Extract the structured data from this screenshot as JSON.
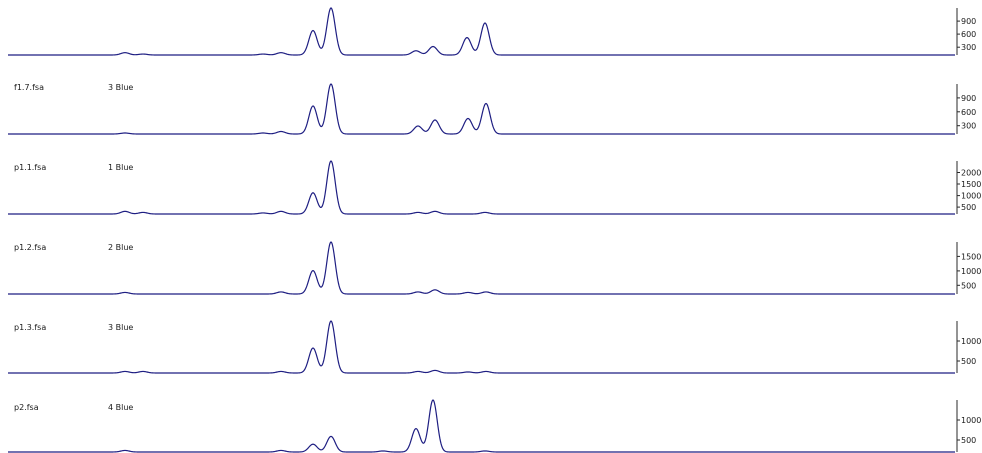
{
  "colors": {
    "trace": "#1e1e82",
    "axis": "#2a2a2a",
    "text": "#1a1a1a"
  },
  "chart_data": [
    {
      "type": "line",
      "sample": "",
      "dye": "",
      "y_ticks": [
        "900",
        "600",
        "300"
      ],
      "peaks": [
        {
          "x": 125,
          "h": 0.05
        },
        {
          "x": 143,
          "h": 0.02
        },
        {
          "x": 263,
          "h": 0.02
        },
        {
          "x": 281,
          "h": 0.05
        },
        {
          "x": 313,
          "h": 0.52
        },
        {
          "x": 331,
          "h": 1.0
        },
        {
          "x": 416,
          "h": 0.09
        },
        {
          "x": 433,
          "h": 0.18
        },
        {
          "x": 467,
          "h": 0.37
        },
        {
          "x": 485,
          "h": 0.68
        }
      ]
    },
    {
      "type": "line",
      "sample": "f1.7.fsa",
      "dye": "3 Blue",
      "y_ticks": [
        "900",
        "600",
        "300"
      ],
      "peaks": [
        {
          "x": 125,
          "h": 0.02
        },
        {
          "x": 263,
          "h": 0.02
        },
        {
          "x": 281,
          "h": 0.05
        },
        {
          "x": 313,
          "h": 0.56
        },
        {
          "x": 331,
          "h": 1.0
        },
        {
          "x": 418,
          "h": 0.16
        },
        {
          "x": 435,
          "h": 0.28
        },
        {
          "x": 468,
          "h": 0.31
        },
        {
          "x": 486,
          "h": 0.61
        }
      ]
    },
    {
      "type": "line",
      "sample": "p1.1.fsa",
      "dye": "1 Blue",
      "y_ticks": [
        "2000",
        "1500",
        "1000",
        "500"
      ],
      "peaks": [
        {
          "x": 125,
          "h": 0.05
        },
        {
          "x": 143,
          "h": 0.03
        },
        {
          "x": 263,
          "h": 0.02
        },
        {
          "x": 281,
          "h": 0.05
        },
        {
          "x": 313,
          "h": 0.4
        },
        {
          "x": 331,
          "h": 1.0
        },
        {
          "x": 418,
          "h": 0.03
        },
        {
          "x": 435,
          "h": 0.05
        },
        {
          "x": 485,
          "h": 0.03
        }
      ]
    },
    {
      "type": "line",
      "sample": "p1.2.fsa",
      "dye": "2 Blue",
      "y_ticks": [
        "1500",
        "1000",
        "500"
      ],
      "peaks": [
        {
          "x": 125,
          "h": 0.03
        },
        {
          "x": 281,
          "h": 0.04
        },
        {
          "x": 313,
          "h": 0.45
        },
        {
          "x": 331,
          "h": 1.0
        },
        {
          "x": 418,
          "h": 0.04
        },
        {
          "x": 435,
          "h": 0.08
        },
        {
          "x": 468,
          "h": 0.03
        },
        {
          "x": 486,
          "h": 0.04
        }
      ]
    },
    {
      "type": "line",
      "sample": "p1.3.fsa",
      "dye": "3 Blue",
      "y_ticks": [
        "1000",
        "500"
      ],
      "peaks": [
        {
          "x": 125,
          "h": 0.03
        },
        {
          "x": 143,
          "h": 0.03
        },
        {
          "x": 281,
          "h": 0.03
        },
        {
          "x": 313,
          "h": 0.48
        },
        {
          "x": 331,
          "h": 1.0
        },
        {
          "x": 418,
          "h": 0.03
        },
        {
          "x": 435,
          "h": 0.05
        },
        {
          "x": 468,
          "h": 0.02
        },
        {
          "x": 486,
          "h": 0.03
        }
      ]
    },
    {
      "type": "line",
      "sample": "p2.fsa",
      "dye": "4 Blue",
      "y_ticks": [
        "1000",
        "500"
      ],
      "peaks": [
        {
          "x": 125,
          "h": 0.03
        },
        {
          "x": 281,
          "h": 0.03
        },
        {
          "x": 313,
          "h": 0.15
        },
        {
          "x": 331,
          "h": 0.3
        },
        {
          "x": 383,
          "h": 0.02
        },
        {
          "x": 416,
          "h": 0.45
        },
        {
          "x": 433,
          "h": 1.0
        },
        {
          "x": 485,
          "h": 0.02
        }
      ]
    }
  ]
}
